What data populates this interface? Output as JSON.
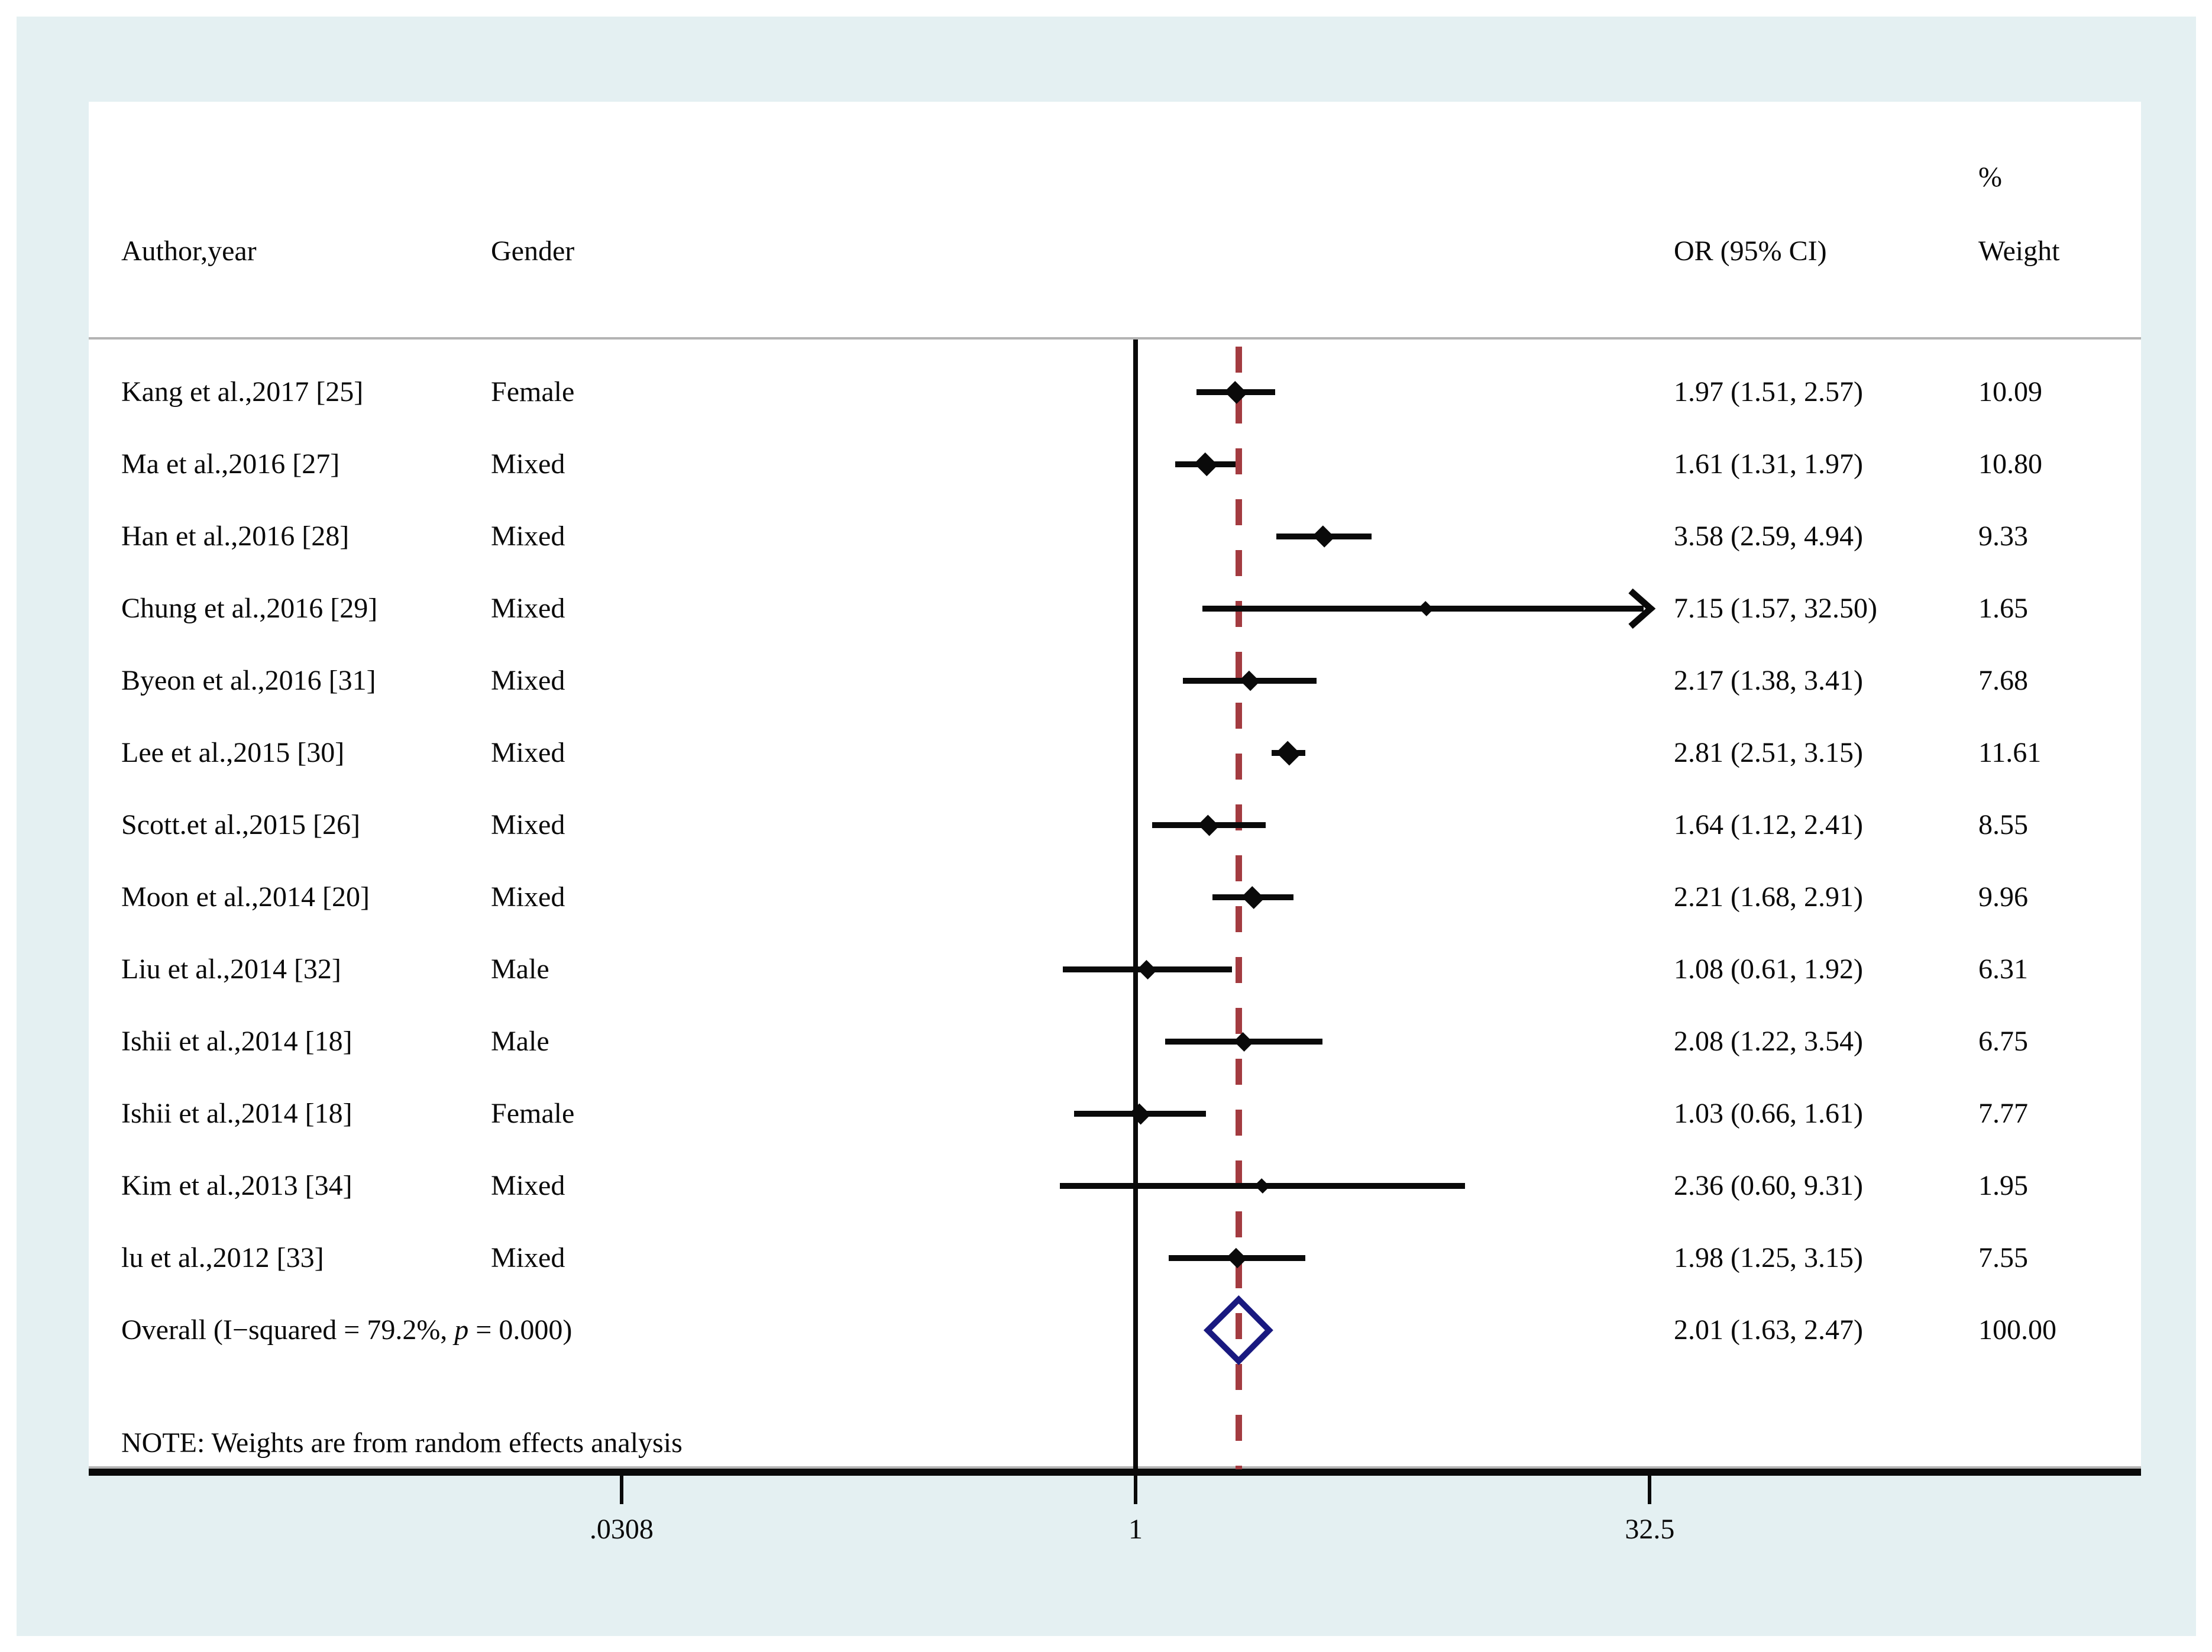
{
  "figure": {
    "columns": {
      "author": "Author,year",
      "gender": "Gender",
      "or": "OR (95% CI)",
      "weight_pct": "%",
      "weight": "Weight"
    },
    "note": "NOTE: Weights are from random effects analysis"
  },
  "chart_data": {
    "type": "forest",
    "x_axis": {
      "scale": "log10",
      "ticks": [
        {
          "label": ".0308",
          "value": 0.0308
        },
        {
          "label": "1",
          "value": 1
        },
        {
          "label": "32.5",
          "value": 32.5
        }
      ]
    },
    "reference_line": {
      "value": 1,
      "style": "solid"
    },
    "overall_dashed_line": {
      "value": 2.01,
      "style": "dashed"
    },
    "studies": [
      {
        "author": "Kang et al.,2017 [25]",
        "gender": "Female",
        "or": 1.97,
        "ci_low": 1.51,
        "ci_high": 2.57,
        "or_text": "1.97 (1.51, 2.57)",
        "weight_text": "10.09",
        "weight": 10.09,
        "arrow_high": false
      },
      {
        "author": "Ma et al.,2016 [27]",
        "gender": "Mixed",
        "or": 1.61,
        "ci_low": 1.31,
        "ci_high": 1.97,
        "or_text": "1.61 (1.31, 1.97)",
        "weight_text": "10.80",
        "weight": 10.8,
        "arrow_high": false
      },
      {
        "author": "Han et al.,2016 [28]",
        "gender": "Mixed",
        "or": 3.58,
        "ci_low": 2.59,
        "ci_high": 4.94,
        "or_text": "3.58 (2.59, 4.94)",
        "weight_text": "9.33",
        "weight": 9.33,
        "arrow_high": false
      },
      {
        "author": "Chung et al.,2016 [29]",
        "gender": "Mixed",
        "or": 7.15,
        "ci_low": 1.57,
        "ci_high": 32.5,
        "or_text": "7.15 (1.57, 32.50)",
        "weight_text": "1.65",
        "weight": 1.65,
        "arrow_high": true
      },
      {
        "author": "Byeon et al.,2016 [31]",
        "gender": "Mixed",
        "or": 2.17,
        "ci_low": 1.38,
        "ci_high": 3.41,
        "or_text": "2.17 (1.38, 3.41)",
        "weight_text": "7.68",
        "weight": 7.68,
        "arrow_high": false
      },
      {
        "author": "Lee et al.,2015 [30]",
        "gender": "Mixed",
        "or": 2.81,
        "ci_low": 2.51,
        "ci_high": 3.15,
        "or_text": "2.81 (2.51, 3.15)",
        "weight_text": "11.61",
        "weight": 11.61,
        "arrow_high": false
      },
      {
        "author": "Scott.et al.,2015 [26]",
        "gender": "Mixed",
        "or": 1.64,
        "ci_low": 1.12,
        "ci_high": 2.41,
        "or_text": "1.64 (1.12, 2.41)",
        "weight_text": "8.55",
        "weight": 8.55,
        "arrow_high": false
      },
      {
        "author": "Moon et al.,2014 [20]",
        "gender": "Mixed",
        "or": 2.21,
        "ci_low": 1.68,
        "ci_high": 2.91,
        "or_text": "2.21 (1.68, 2.91)",
        "weight_text": "9.96",
        "weight": 9.96,
        "arrow_high": false
      },
      {
        "author": "Liu et al.,2014 [32]",
        "gender": "Male",
        "or": 1.08,
        "ci_low": 0.61,
        "ci_high": 1.92,
        "or_text": "1.08 (0.61, 1.92)",
        "weight_text": "6.31",
        "weight": 6.31,
        "arrow_high": false
      },
      {
        "author": "Ishii et al.,2014 [18]",
        "gender": "Male",
        "or": 2.08,
        "ci_low": 1.22,
        "ci_high": 3.54,
        "or_text": "2.08 (1.22, 3.54)",
        "weight_text": "6.75",
        "weight": 6.75,
        "arrow_high": false
      },
      {
        "author": "Ishii et al.,2014 [18]",
        "gender": "Female",
        "or": 1.03,
        "ci_low": 0.66,
        "ci_high": 1.61,
        "or_text": "1.03 (0.66, 1.61)",
        "weight_text": "7.77",
        "weight": 7.77,
        "arrow_high": false
      },
      {
        "author": "Kim et al.,2013 [34]",
        "gender": "Mixed",
        "or": 2.36,
        "ci_low": 0.6,
        "ci_high": 9.31,
        "or_text": "2.36 (0.60, 9.31)",
        "weight_text": "1.95",
        "weight": 1.95,
        "arrow_high": false
      },
      {
        "author": "lu et al.,2012 [33]",
        "gender": "Mixed",
        "or": 1.98,
        "ci_low": 1.25,
        "ci_high": 3.15,
        "or_text": "1.98 (1.25, 3.15)",
        "weight_text": "7.55",
        "weight": 7.55,
        "arrow_high": false
      }
    ],
    "overall": {
      "label_pre": "Overall  (I−squared = 79.2%, ",
      "label_p": "p",
      "label_post": " = 0.000)",
      "or": 2.01,
      "ci_low": 1.63,
      "ci_high": 2.47,
      "or_text": "2.01 (1.63, 2.47)",
      "weight_text": "100.00"
    },
    "colors": {
      "marker": "#0a0a0a",
      "overall_diamond": "#191980",
      "dashed_line": "#a33b40",
      "axis": "#0a0a0a",
      "separator": "#b3b3b3",
      "background_band": "#e4f0f2"
    }
  }
}
